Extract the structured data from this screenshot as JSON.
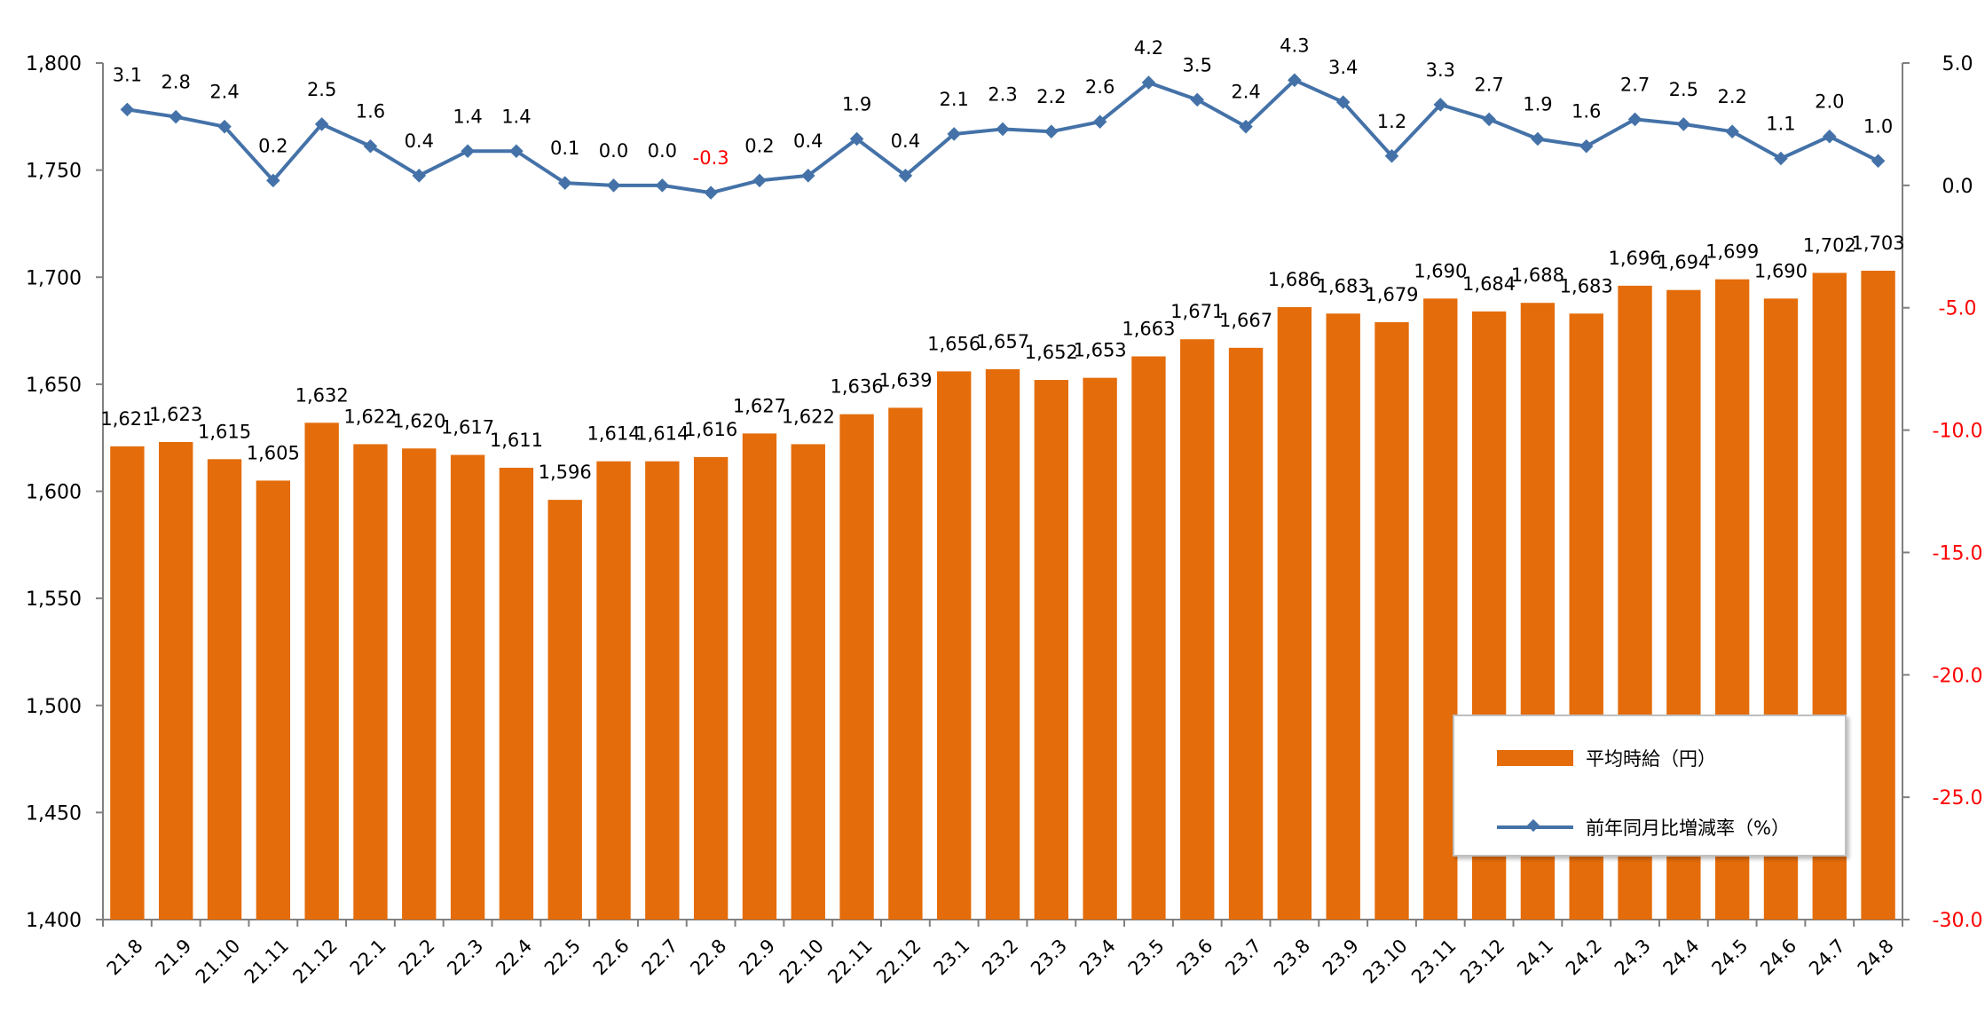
{
  "chart_data": {
    "type": "bar+line",
    "categories": [
      "21.8",
      "21.9",
      "21.10",
      "21.11",
      "21.12",
      "22.1",
      "22.2",
      "22.3",
      "22.4",
      "22.5",
      "22.6",
      "22.7",
      "22.8",
      "22.9",
      "22.10",
      "22.11",
      "22.12",
      "23.1",
      "23.2",
      "23.3",
      "23.4",
      "23.5",
      "23.6",
      "23.7",
      "23.8",
      "23.9",
      "23.10",
      "23.11",
      "23.12",
      "24.1",
      "24.2",
      "24.3",
      "24.4",
      "24.5",
      "24.6",
      "24.7",
      "24.8"
    ],
    "series": [
      {
        "name": "平均時給（円）",
        "type": "bar",
        "axis": "left",
        "color": "#E46C0A",
        "values": [
          1621,
          1623,
          1615,
          1605,
          1632,
          1622,
          1620,
          1617,
          1611,
          1596,
          1614,
          1614,
          1616,
          1627,
          1622,
          1636,
          1639,
          1656,
          1657,
          1652,
          1653,
          1663,
          1671,
          1667,
          1686,
          1683,
          1679,
          1690,
          1684,
          1688,
          1683,
          1696,
          1694,
          1699,
          1690,
          1702,
          1703
        ],
        "labels": [
          "1,621",
          "1,623",
          "1,615",
          "1,605",
          "1,632",
          "1,622",
          "1,620",
          "1,617",
          "1,611",
          "1,596",
          "1,614",
          "1,614",
          "1,616",
          "1,627",
          "1,622",
          "1,636",
          "1,639",
          "1,656",
          "1,657",
          "1,652",
          "1,653",
          "1,663",
          "1,671",
          "1,667",
          "1,686",
          "1,683",
          "1,679",
          "1,690",
          "1,684",
          "1,688",
          "1,683",
          "1,696",
          "1,694",
          "1,699",
          "1,690",
          "1,702",
          "1,703"
        ]
      },
      {
        "name": "前年同月比増減率（%）",
        "type": "line",
        "axis": "right",
        "color": "#4472A8",
        "values": [
          3.1,
          2.8,
          2.4,
          0.2,
          2.5,
          1.6,
          0.4,
          1.4,
          1.4,
          0.1,
          0.0,
          0.0,
          -0.3,
          0.2,
          0.4,
          1.9,
          0.4,
          2.1,
          2.3,
          2.2,
          2.6,
          4.2,
          3.5,
          2.4,
          4.3,
          3.4,
          1.2,
          3.3,
          2.7,
          1.9,
          1.6,
          2.7,
          2.5,
          2.2,
          1.1,
          2.0,
          1.0
        ],
        "labels": [
          "3.1",
          "2.8",
          "2.4",
          "0.2",
          "2.5",
          "1.6",
          "0.4",
          "1.4",
          "1.4",
          "0.1",
          "0.0",
          "0.0",
          "-0.3",
          "0.2",
          "0.4",
          "1.9",
          "0.4",
          "2.1",
          "2.3",
          "2.2",
          "2.6",
          "4.2",
          "3.5",
          "2.4",
          "4.3",
          "3.4",
          "1.2",
          "3.3",
          "2.7",
          "1.9",
          "1.6",
          "2.7",
          "2.5",
          "2.2",
          "1.1",
          "2.0",
          "1.0"
        ]
      }
    ],
    "y_left": {
      "min": 1400,
      "max": 1800,
      "ticks": [
        1400,
        1450,
        1500,
        1550,
        1600,
        1650,
        1700,
        1750,
        1800
      ],
      "tick_labels": [
        "1,400",
        "1,450",
        "1,500",
        "1,550",
        "1,600",
        "1,650",
        "1,700",
        "1,750",
        "1,800"
      ]
    },
    "y_right": {
      "min": -30,
      "max": 5,
      "ticks": [
        -30,
        -25,
        -20,
        -15,
        -10,
        -5,
        0,
        5
      ],
      "tick_labels": [
        "-30.0",
        "-25.0",
        "-20.0",
        "-15.0",
        "-10.0",
        "-5.0",
        "0.0",
        "5.0"
      ]
    },
    "negative_color": "#FF0000",
    "legend_position": "bottom-right",
    "grid": false
  },
  "legend": {
    "bar_label": "平均時給（円）",
    "line_label": "前年同月比増減率（%）"
  }
}
